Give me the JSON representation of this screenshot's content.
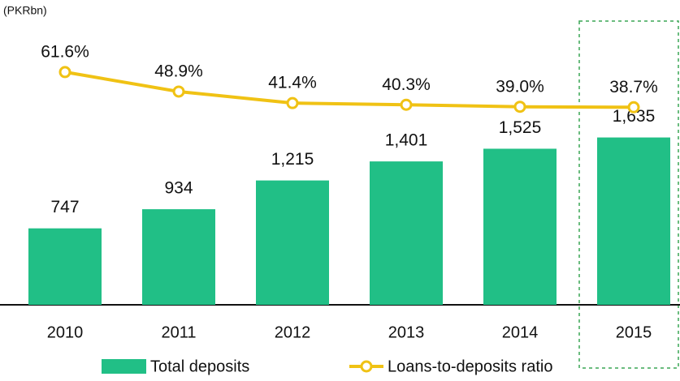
{
  "chart_data": {
    "type": "combo",
    "unit_label": "(PKRbn)",
    "categories": [
      "2010",
      "2011",
      "2012",
      "2013",
      "2014",
      "2015"
    ],
    "ylim": [
      0,
      2400
    ],
    "y2lim": [
      -90,
      70
    ],
    "legend": "bottom",
    "series": [
      {
        "name": "Total deposits",
        "type": "bar",
        "color": "#21bf86",
        "values": [
          747,
          934,
          1215,
          1401,
          1525,
          1635
        ],
        "value_labels": [
          "747",
          "934",
          "1,215",
          "1,401",
          "1,525",
          "1,635"
        ]
      },
      {
        "name": "Loans-to-deposits ratio",
        "type": "line",
        "axis": "y2",
        "color": "#f0c214",
        "values": [
          61.6,
          48.9,
          41.4,
          40.3,
          39.0,
          38.7
        ],
        "value_labels": [
          "61.6%",
          "48.9%",
          "41.4%",
          "40.3%",
          "39.0%",
          "38.7%"
        ]
      }
    ]
  }
}
